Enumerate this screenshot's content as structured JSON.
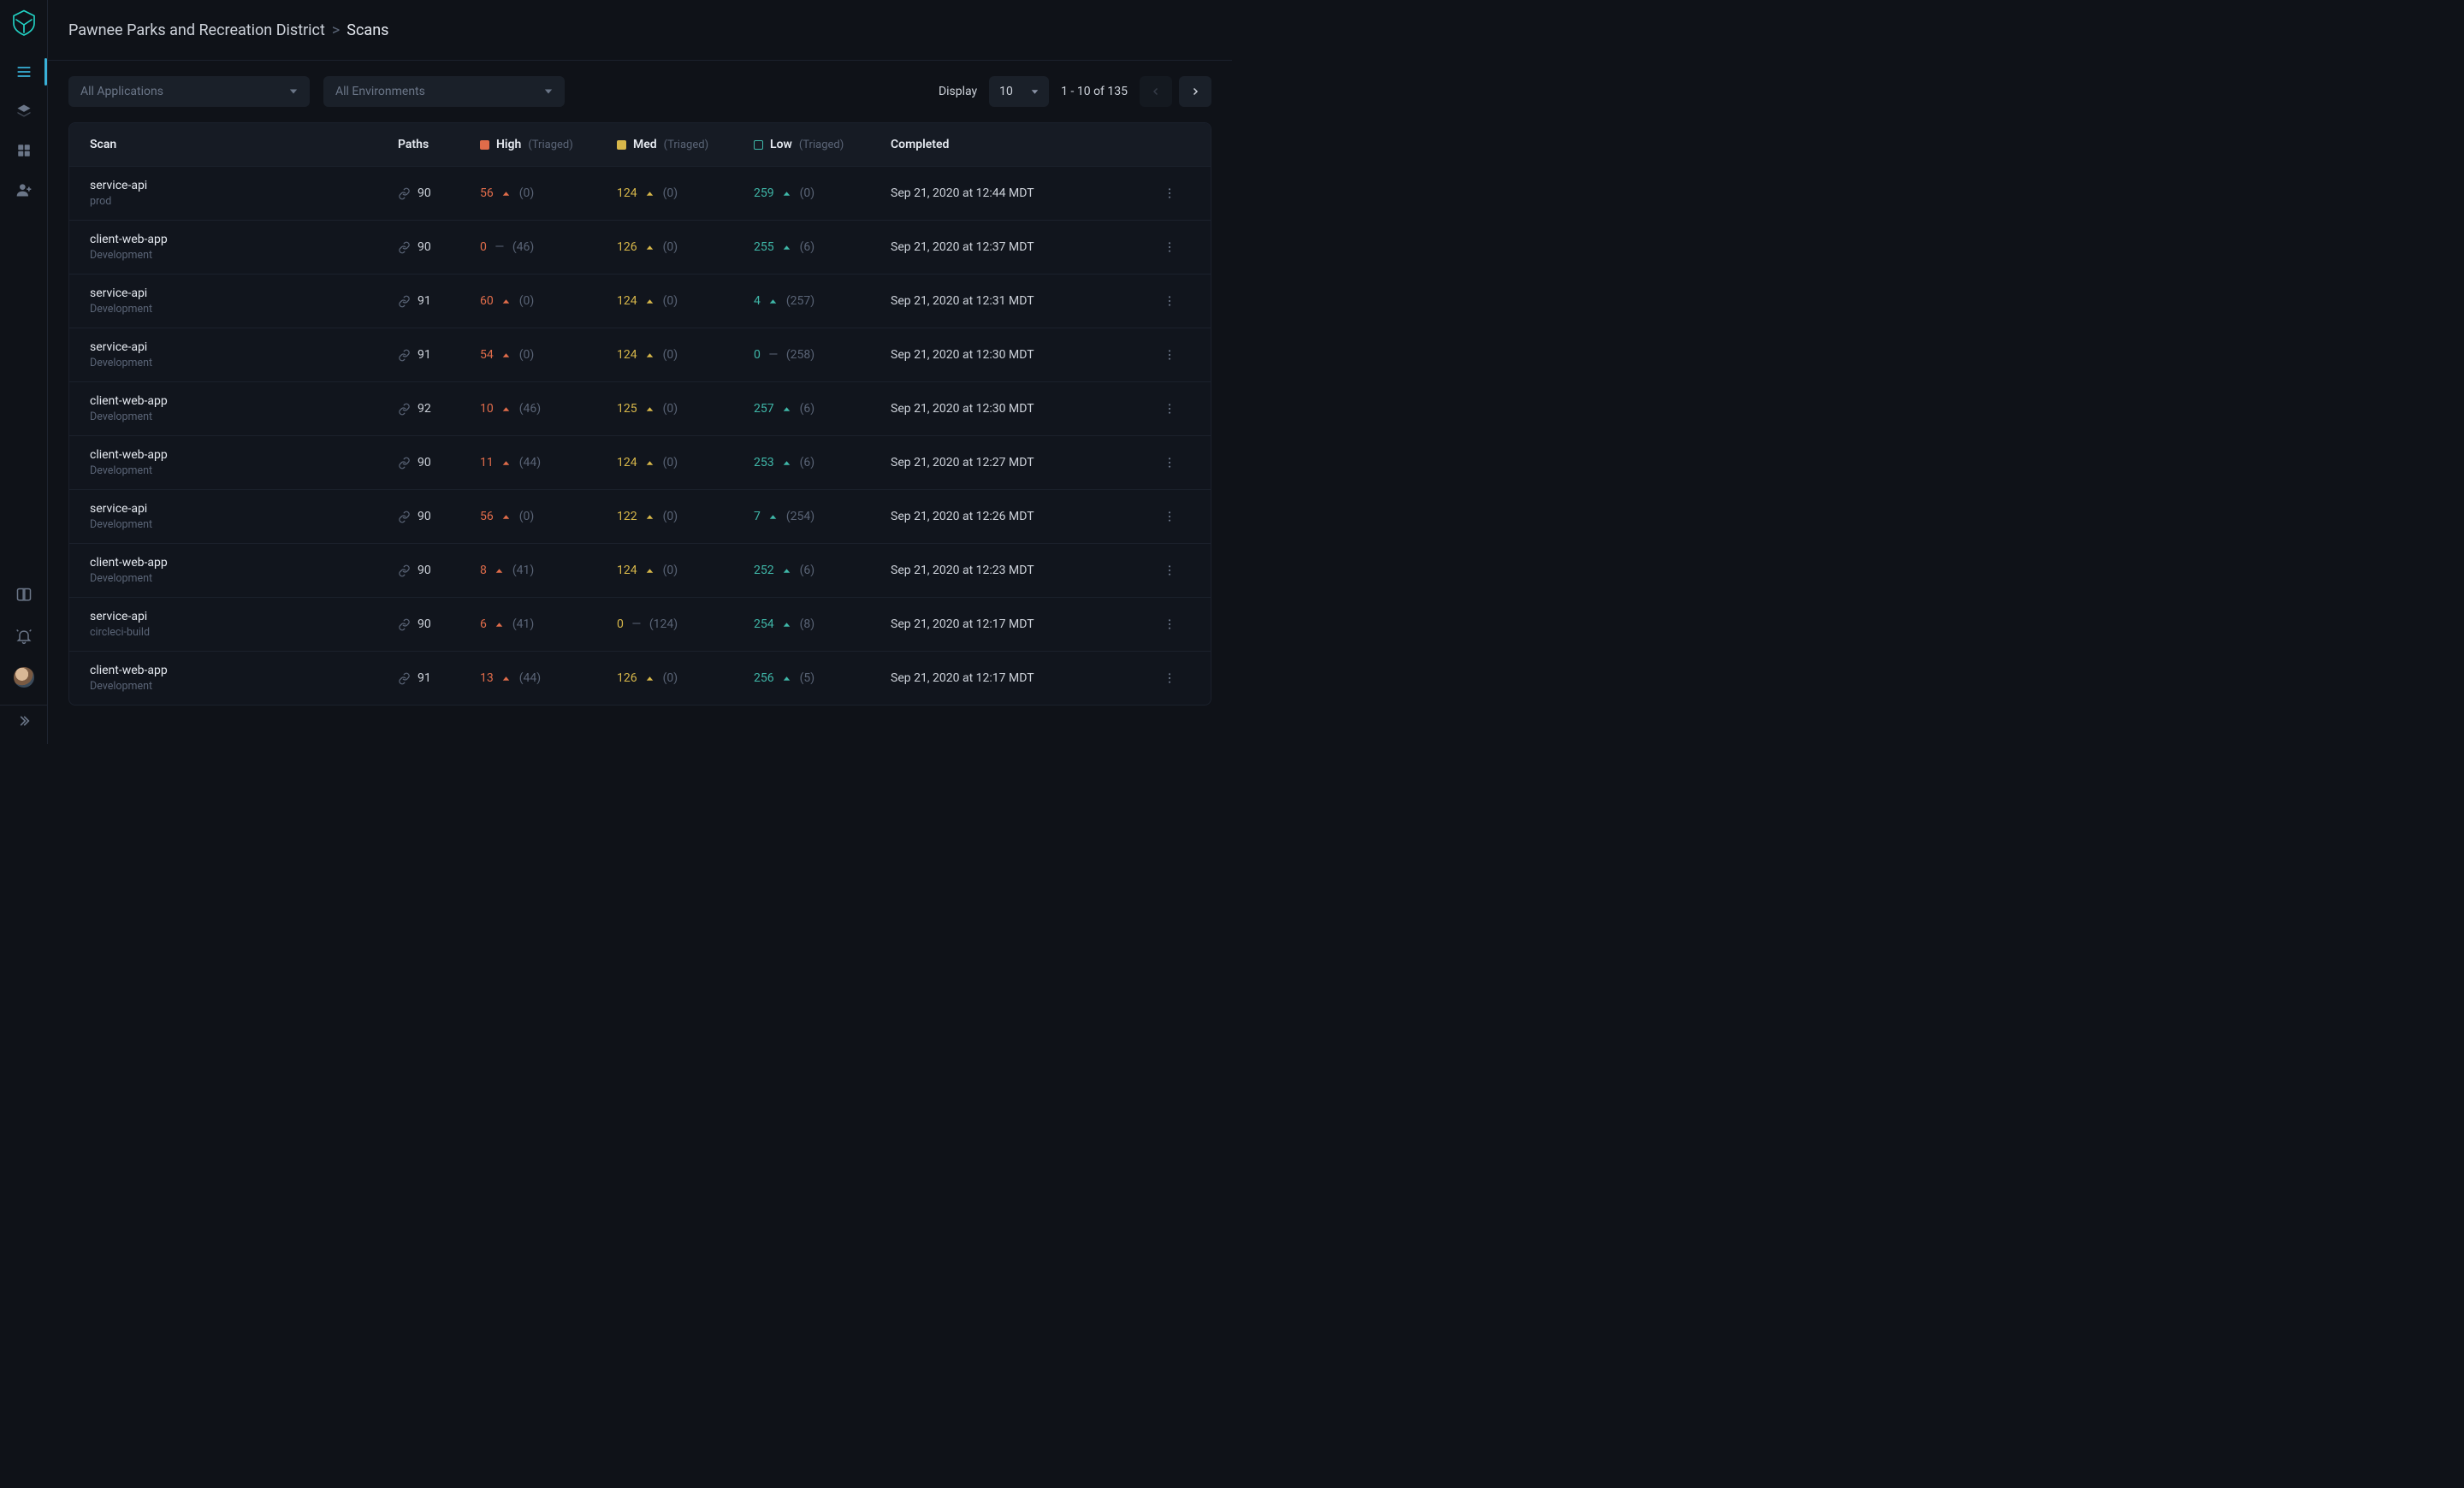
{
  "breadcrumb": {
    "org": "Pawnee Parks and Recreation District",
    "sep": ">",
    "current": "Scans"
  },
  "filters": {
    "applications_placeholder": "All Applications",
    "environments_placeholder": "All Environments"
  },
  "pager": {
    "display_label": "Display",
    "page_size": "10",
    "range": "1 - 10 of 135"
  },
  "columns": {
    "scan": "Scan",
    "paths": "Paths",
    "high": "High",
    "med": "Med",
    "low": "Low",
    "completed": "Completed",
    "triaged_suffix": "(Triaged)"
  },
  "colors": {
    "background": "#0f1218",
    "panel": "#11151d",
    "header": "#161b24",
    "border": "#1b212c",
    "text": "#cdd2da",
    "muted": "#5a6476",
    "accent": "#39b1d8",
    "logo": "#22d3c5",
    "high": "#e06c4a",
    "med": "#d7b74a",
    "low": "#3fb7a8"
  },
  "rows": [
    {
      "name": "service-api",
      "env": "prod",
      "paths": "90",
      "high": "56",
      "high_trend": "up",
      "high_tri": "(0)",
      "med": "124",
      "med_trend": "up",
      "med_tri": "(0)",
      "low": "259",
      "low_trend": "up",
      "low_tri": "(0)",
      "completed": "Sep 21, 2020 at 12:44 MDT"
    },
    {
      "name": "client-web-app",
      "env": "Development",
      "paths": "90",
      "high": "0",
      "high_trend": "dash",
      "high_tri": "(46)",
      "med": "126",
      "med_trend": "up",
      "med_tri": "(0)",
      "low": "255",
      "low_trend": "up",
      "low_tri": "(6)",
      "completed": "Sep 21, 2020 at 12:37 MDT"
    },
    {
      "name": "service-api",
      "env": "Development",
      "paths": "91",
      "high": "60",
      "high_trend": "up",
      "high_tri": "(0)",
      "med": "124",
      "med_trend": "up",
      "med_tri": "(0)",
      "low": "4",
      "low_trend": "up",
      "low_tri": "(257)",
      "completed": "Sep 21, 2020 at 12:31 MDT"
    },
    {
      "name": "service-api",
      "env": "Development",
      "paths": "91",
      "high": "54",
      "high_trend": "up",
      "high_tri": "(0)",
      "med": "124",
      "med_trend": "up",
      "med_tri": "(0)",
      "low": "0",
      "low_trend": "dash",
      "low_tri": "(258)",
      "completed": "Sep 21, 2020 at 12:30 MDT"
    },
    {
      "name": "client-web-app",
      "env": "Development",
      "paths": "92",
      "high": "10",
      "high_trend": "up",
      "high_tri": "(46)",
      "med": "125",
      "med_trend": "up",
      "med_tri": "(0)",
      "low": "257",
      "low_trend": "up",
      "low_tri": "(6)",
      "completed": "Sep 21, 2020 at 12:30 MDT"
    },
    {
      "name": "client-web-app",
      "env": "Development",
      "paths": "90",
      "high": "11",
      "high_trend": "up",
      "high_tri": "(44)",
      "med": "124",
      "med_trend": "up",
      "med_tri": "(0)",
      "low": "253",
      "low_trend": "up",
      "low_tri": "(6)",
      "completed": "Sep 21, 2020 at 12:27 MDT"
    },
    {
      "name": "service-api",
      "env": "Development",
      "paths": "90",
      "high": "56",
      "high_trend": "up",
      "high_tri": "(0)",
      "med": "122",
      "med_trend": "up",
      "med_tri": "(0)",
      "low": "7",
      "low_trend": "up",
      "low_tri": "(254)",
      "completed": "Sep 21, 2020 at 12:26 MDT"
    },
    {
      "name": "client-web-app",
      "env": "Development",
      "paths": "90",
      "high": "8",
      "high_trend": "up",
      "high_tri": "(41)",
      "med": "124",
      "med_trend": "up",
      "med_tri": "(0)",
      "low": "252",
      "low_trend": "up",
      "low_tri": "(6)",
      "completed": "Sep 21, 2020 at 12:23 MDT"
    },
    {
      "name": "service-api",
      "env": "circleci-build",
      "paths": "90",
      "high": "6",
      "high_trend": "up",
      "high_tri": "(41)",
      "med": "0",
      "med_trend": "dash",
      "med_tri": "(124)",
      "low": "254",
      "low_trend": "up",
      "low_tri": "(8)",
      "completed": "Sep 21, 2020 at 12:17 MDT"
    },
    {
      "name": "client-web-app",
      "env": "Development",
      "paths": "91",
      "high": "13",
      "high_trend": "up",
      "high_tri": "(44)",
      "med": "126",
      "med_trend": "up",
      "med_tri": "(0)",
      "low": "256",
      "low_trend": "up",
      "low_tri": "(5)",
      "completed": "Sep 21, 2020 at 12:17 MDT"
    }
  ]
}
